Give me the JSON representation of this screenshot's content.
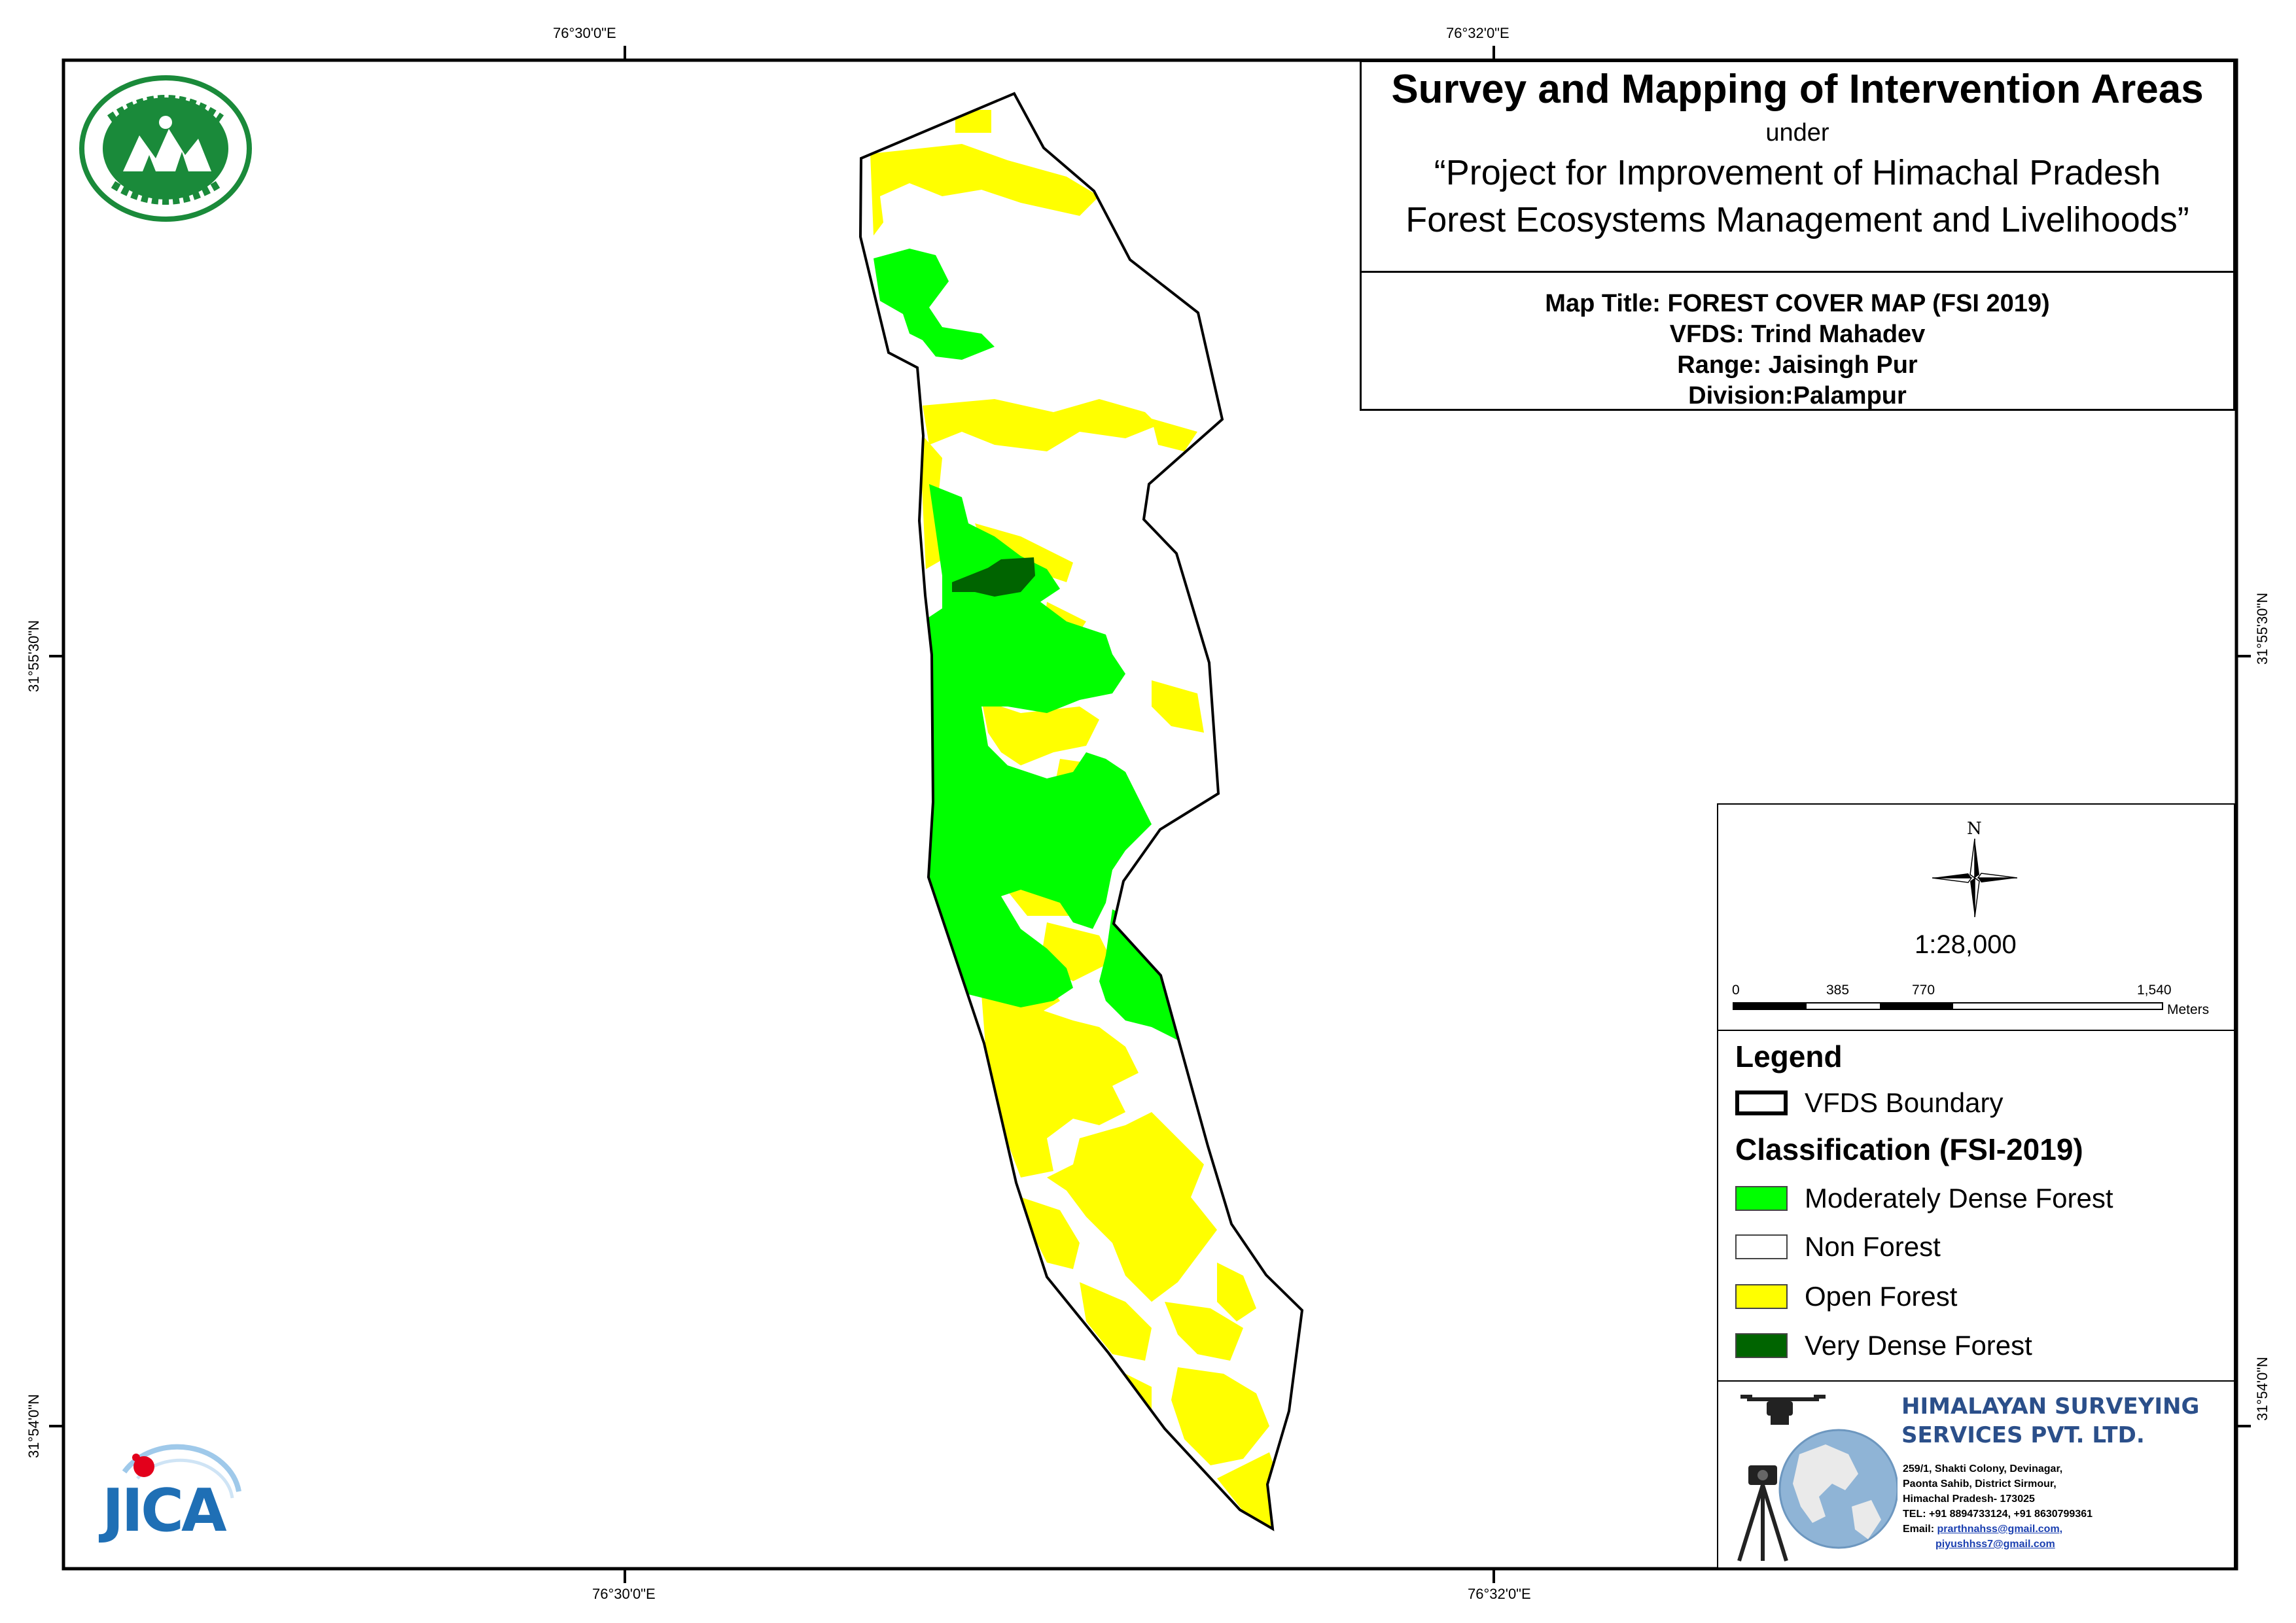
{
  "title": {
    "main": "Survey and Mapping of Intervention Areas",
    "under": "under",
    "project_line1": "“Project for Improvement of Himachal Pradesh",
    "project_line2": "Forest Ecosystems Management and Livelihoods”"
  },
  "map_info": {
    "map_title": "Map Title: FOREST COVER MAP (FSI 2019)",
    "vfds": "VFDS: Trind Mahadev",
    "range": "Range: Jaisingh Pur",
    "division": "Division:Palampur"
  },
  "graticule": {
    "top_left": "76°30'0\"E",
    "top_right": "76°32'0\"E",
    "bottom_left": "76°30'0\"E",
    "bottom_right": "76°32'0\"E",
    "left_upper": "31°55'30\"N",
    "left_lower": "31°54'0\"N",
    "right_upper": "31°55'30\"N",
    "right_lower": "31°54'0\"N"
  },
  "north_arrow": {
    "label": "N",
    "icon": "compass-rose-icon"
  },
  "scale": {
    "ratio": "1:28,000",
    "ticks": [
      "0",
      "385",
      "770",
      "1,540"
    ],
    "unit": "Meters"
  },
  "legend": {
    "title": "Legend",
    "boundary_label": "VFDS Boundary",
    "classification_title": "Classification (FSI-2019)",
    "classes": [
      {
        "label": "Moderately Dense Forest",
        "color": "#00ff00"
      },
      {
        "label": "Non Forest",
        "color": "#ffffff"
      },
      {
        "label": "Open Forest",
        "color": "#ffff00"
      },
      {
        "label": "Very Dense Forest",
        "color": "#006400"
      }
    ]
  },
  "company": {
    "name_line1": "HIMALAYAN SURVEYING",
    "name_line2": "SERVICES PVT. LTD.",
    "address_line1": "259/1, Shakti Colony, Devinagar,",
    "address_line2": "Paonta Sahib, District Sirmour,",
    "address_line3": "Himachal Pradesh- 173025",
    "tel": "TEL: +91 8894733124, +91 8630799361",
    "email_label": "Email:",
    "email1": "prarthnahss@gmail.com,",
    "email2": "piyushhss7@gmail.com",
    "logo_icon": "globe-survey-logo-icon"
  },
  "logos": {
    "forest_dept": "forest-department-seal-icon",
    "jica_text": "JICA"
  },
  "colors": {
    "moderately_dense": "#00ff00",
    "open": "#ffff00",
    "very_dense": "#006400",
    "company_blue": "#2b4f8a",
    "jica_blue": "#1f6fb5",
    "jica_red": "#e3001b"
  }
}
